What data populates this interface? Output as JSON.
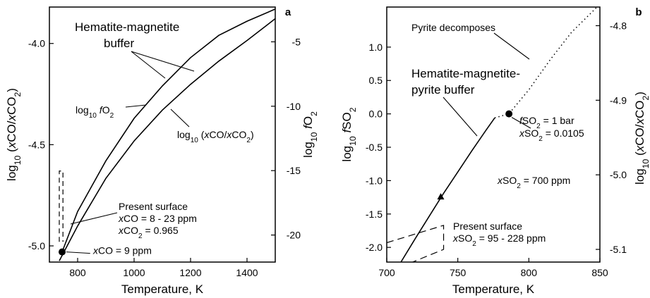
{
  "chart_data": [
    {
      "type": "line",
      "panel_label": "a",
      "xlabel": "Temperature, K",
      "ylabel_left": [
        "log",
        "10",
        " (",
        "x",
        "CO/",
        "x",
        "CO",
        "2",
        ")"
      ],
      "ylabel_right": [
        "log",
        "10",
        " ",
        "f",
        "O",
        "2"
      ],
      "xlim": [
        700,
        1500
      ],
      "ylim_left": [
        -5.08,
        -3.82
      ],
      "ylim_right": [
        -22.1,
        -2.3
      ],
      "x_ticks": [
        "800",
        "1000",
        "1200",
        "1400"
      ],
      "y_ticks_left": [
        "-4.0",
        "-4.5",
        "-5.0"
      ],
      "y_ticks_right": [
        "-5",
        "-10",
        "-15",
        "-20"
      ],
      "series": [
        {
          "name": "log10 fO2",
          "axis": "right",
          "x": [
            735,
            800,
            900,
            1000,
            1100,
            1200,
            1300,
            1400,
            1500
          ],
          "y": [
            -22.0,
            -19.3,
            -15.6,
            -12.7,
            -10.3,
            -8.3,
            -6.5,
            -4.9,
            -3.2
          ]
        },
        {
          "name": "log10 (xCO/xCO2)",
          "axis": "left",
          "x": [
            745,
            800,
            900,
            1000,
            1100,
            1200,
            1300,
            1400,
            1500
          ],
          "y": [
            -5.03,
            -4.83,
            -4.58,
            -4.37,
            -4.21,
            -4.07,
            -3.96,
            -3.89,
            -3.83
          ]
        }
      ],
      "present_surface_box": {
        "x": [
          735,
          748
        ],
        "y_left": [
          -5.03,
          -4.63
        ]
      },
      "marker": {
        "x": 745,
        "y_left": -5.03,
        "label": [
          "x",
          "CO = 9 ppm"
        ]
      },
      "annotations": {
        "buffer": [
          "Hematite-magnetite",
          "buffer"
        ],
        "fo2": [
          "log",
          "10",
          " ",
          "f",
          "O",
          "2"
        ],
        "ratio": [
          "log",
          "10",
          " (",
          "x",
          "CO/",
          "x",
          "CO",
          "2",
          ")"
        ],
        "surface_title": "Present surface",
        "surface_co": [
          "x",
          "CO = 8 - 23 ppm"
        ],
        "surface_co2": [
          "x",
          "CO",
          "2",
          " = 0.965"
        ]
      }
    },
    {
      "type": "line",
      "panel_label": "b",
      "xlabel": "Temperature, K",
      "ylabel_left": [
        "log",
        "10",
        " ",
        "f",
        "SO",
        "2"
      ],
      "ylabel_right": [
        "log",
        "10",
        " (",
        "x",
        "CO/",
        "x",
        "CO",
        "2",
        ")"
      ],
      "xlim": [
        700,
        850
      ],
      "ylim_left": [
        -2.22,
        1.6
      ],
      "ylim_right": [
        -5.117,
        -4.775
      ],
      "x_ticks": [
        "700",
        "750",
        "800",
        "850"
      ],
      "y_ticks_left": [
        "1.0",
        "0.5",
        "0.0",
        "-0.5",
        "-1.0",
        "-1.5",
        "-2.0"
      ],
      "y_ticks_right": [
        "-4.8",
        "-4.9",
        "-5.0",
        "-5.1"
      ],
      "series": [
        {
          "name": "Hematite-magnetite-pyrite buffer",
          "style": "solid",
          "x": [
            710,
            720,
            730,
            740,
            750,
            760,
            770,
            776
          ],
          "y": [
            -2.22,
            -1.87,
            -1.53,
            -1.19,
            -0.87,
            -0.55,
            -0.24,
            -0.06
          ]
        },
        {
          "name": "Pyrite decomposes",
          "style": "dotted",
          "x": [
            776,
            786,
            800,
            815,
            830,
            848
          ],
          "y": [
            -0.06,
            0.0,
            0.36,
            0.81,
            1.22,
            1.6
          ]
        }
      ],
      "markers": [
        {
          "x": 786,
          "y": 0.0,
          "shape": "circle",
          "label1": [
            "f",
            "SO",
            "2",
            " = 1 bar"
          ],
          "label2": [
            "x",
            "SO",
            "2",
            " = 0.0105"
          ]
        },
        {
          "x": 738,
          "y": -1.24,
          "shape": "triangle",
          "label": [
            "x",
            "SO",
            "2",
            " = 700 ppm"
          ]
        }
      ],
      "present_surface_box": {
        "x": [
          700,
          740
        ],
        "y": [
          -2.22,
          -1.67
        ]
      },
      "annotations": {
        "buffer": [
          "Hematite-magnetite-",
          "pyrite buffer"
        ],
        "pyrite": "Pyrite decomposes",
        "surface_title": "Present surface",
        "surface_so2": [
          "x",
          "SO",
          "2",
          " = 95 - 228 ppm"
        ]
      }
    }
  ]
}
